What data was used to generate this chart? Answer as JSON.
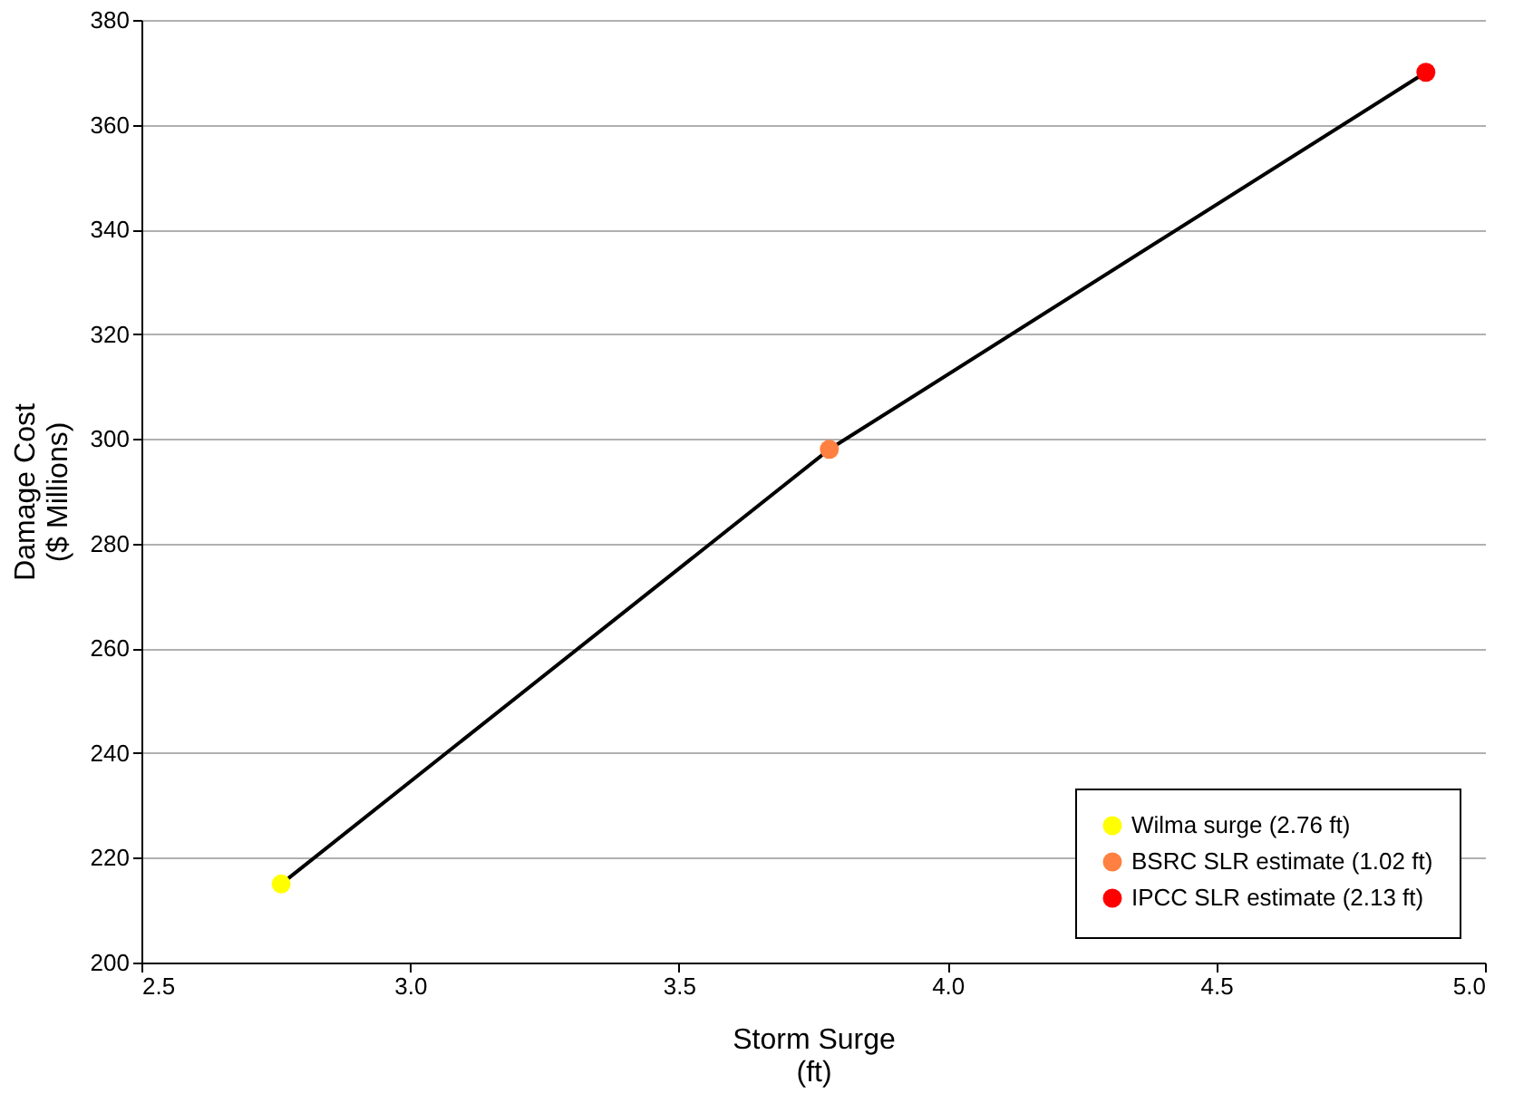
{
  "chart_data": {
    "type": "scatter",
    "xlabel": "Storm Surge\n(ft)",
    "ylabel": "Damage Cost\n($ Millions)",
    "xlim": [
      2.5,
      5.0
    ],
    "xticks": [
      {
        "value": 2.5,
        "label": "2.5"
      },
      {
        "value": 3.0,
        "label": "3.0"
      },
      {
        "value": 3.5,
        "label": "3.5"
      },
      {
        "value": 4.0,
        "label": "4.0"
      },
      {
        "value": 4.5,
        "label": "4.5"
      },
      {
        "value": 5.0,
        "label": "5.0"
      }
    ],
    "ylim": [
      200,
      380
    ],
    "yticks": [
      200,
      220,
      240,
      260,
      280,
      300,
      320,
      340,
      360,
      380
    ],
    "grid": "y",
    "legend": "bottom right",
    "series": [
      {
        "type": "line",
        "color": "#000000",
        "x": [
          2.76,
          3.78,
          4.89
        ],
        "values": [
          215,
          298,
          370
        ],
        "marker": "none",
        "line_style": "solid"
      },
      {
        "name": "Wilma surge (2.76 ft)",
        "color": "#ffff00",
        "marker": "circle",
        "x": [
          2.76
        ],
        "values": [
          215
        ]
      },
      {
        "name": "BSRC SLR estimate (1.02 ft)",
        "color": "#ff8040",
        "marker": "circle",
        "x": [
          3.78
        ],
        "values": [
          298
        ]
      },
      {
        "name": "IPCC SLR estimate (2.13 ft)",
        "color": "#ff0000",
        "marker": "circle",
        "x": [
          4.89
        ],
        "values": [
          370
        ]
      }
    ]
  }
}
